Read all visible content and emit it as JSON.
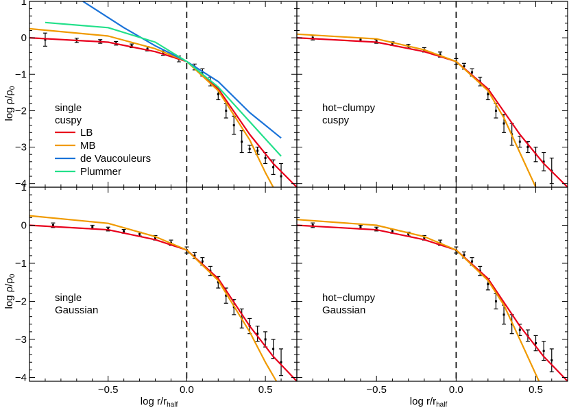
{
  "chart_data": {
    "type": "line",
    "xlim": [
      -1.0,
      0.7
    ],
    "ylim": [
      -4.1,
      1.0
    ],
    "xlabel": "log r/r",
    "xlabel_sub": "half",
    "ylabel": "log ρ/ρ",
    "ylabel_sub": "0",
    "x_ticks": [
      -0.5,
      0.0,
      0.5
    ],
    "x_tick_labels": [
      "−0.5",
      "0.0",
      "0.5"
    ],
    "y_ticks": [
      1,
      0,
      -1,
      -2,
      -3,
      -4
    ],
    "y_tick_labels": [
      "1",
      "0",
      "−1",
      "−2",
      "−3",
      "−4"
    ],
    "reference_line_x": 0.0,
    "series_colors": {
      "LB": "#e8001c",
      "MB": "#f09a00",
      "de Vaucouleurs": "#1a73d9",
      "Plummer": "#22e08a",
      "data": "#000000",
      "reference": "#000000"
    },
    "panels": [
      {
        "label_lines": [
          "single",
          "cuspy"
        ],
        "legend": [
          "LB",
          "MB",
          "de Vaucouleurs",
          "Plummer"
        ],
        "series": [
          {
            "name": "LB",
            "x": [
              -1.0,
              -0.5,
              -0.2,
              0.0,
              0.2,
              0.4,
              0.55,
              0.7
            ],
            "y": [
              0.0,
              -0.12,
              -0.38,
              -0.65,
              -1.4,
              -2.65,
              -3.45,
              -4.1
            ]
          },
          {
            "name": "MB",
            "x": [
              -1.0,
              -0.5,
              -0.2,
              0.0,
              0.2,
              0.4,
              0.5,
              0.55
            ],
            "y": [
              0.25,
              0.05,
              -0.3,
              -0.65,
              -1.45,
              -2.8,
              -3.7,
              -4.1
            ]
          },
          {
            "name": "de Vaucouleurs",
            "x": [
              -0.66,
              -0.4,
              -0.2,
              0.0,
              0.2,
              0.4,
              0.6
            ],
            "y": [
              1.0,
              0.28,
              -0.22,
              -0.65,
              -1.2,
              -2.05,
              -2.75
            ]
          },
          {
            "name": "Plummer",
            "x": [
              -0.9,
              -0.5,
              -0.2,
              0.0,
              0.2,
              0.4,
              0.6
            ],
            "y": [
              0.42,
              0.28,
              -0.12,
              -0.65,
              -1.35,
              -2.3,
              -3.25
            ]
          }
        ],
        "data_points": {
          "x": [
            -0.9,
            -0.7,
            -0.55,
            -0.45,
            -0.35,
            -0.25,
            -0.15,
            -0.05,
            0.05,
            0.1,
            0.15,
            0.2,
            0.25,
            0.3,
            0.35,
            0.4,
            0.45,
            0.5,
            0.55,
            0.6
          ],
          "y": [
            -0.05,
            -0.07,
            -0.1,
            -0.15,
            -0.22,
            -0.3,
            -0.42,
            -0.58,
            -0.8,
            -0.95,
            -1.2,
            -1.55,
            -2.0,
            -2.4,
            -2.85,
            -3.05,
            -3.1,
            -3.3,
            -3.55,
            -3.8
          ],
          "err": [
            0.18,
            0.06,
            0.05,
            0.05,
            0.05,
            0.06,
            0.06,
            0.08,
            0.08,
            0.1,
            0.12,
            0.15,
            0.2,
            0.25,
            0.3,
            0.1,
            0.1,
            0.15,
            0.2,
            0.35
          ]
        }
      },
      {
        "label_lines": [
          "hot−clumpy",
          "cuspy"
        ],
        "legend": [],
        "series": [
          {
            "name": "LB",
            "x": [
              -1.0,
              -0.5,
              -0.2,
              0.0,
              0.2,
              0.4,
              0.55,
              0.7
            ],
            "y": [
              0.0,
              -0.12,
              -0.38,
              -0.65,
              -1.4,
              -2.65,
              -3.45,
              -4.1
            ]
          },
          {
            "name": "MB",
            "x": [
              -1.0,
              -0.5,
              -0.2,
              0.0,
              0.2,
              0.3,
              0.4,
              0.5
            ],
            "y": [
              0.1,
              -0.03,
              -0.33,
              -0.65,
              -1.45,
              -2.2,
              -3.15,
              -4.1
            ]
          }
        ],
        "data_points": {
          "x": [
            -0.9,
            -0.6,
            -0.5,
            -0.4,
            -0.3,
            -0.2,
            -0.1,
            0.0,
            0.05,
            0.1,
            0.15,
            0.2,
            0.25,
            0.3,
            0.35,
            0.4,
            0.45,
            0.5,
            0.55,
            0.6
          ],
          "y": [
            0.0,
            -0.05,
            -0.1,
            -0.16,
            -0.23,
            -0.33,
            -0.46,
            -0.65,
            -0.78,
            -0.95,
            -1.2,
            -1.55,
            -2.0,
            -2.35,
            -2.65,
            -2.85,
            -3.0,
            -3.2,
            -3.4,
            -3.65
          ],
          "err": [
            0.06,
            0.05,
            0.05,
            0.05,
            0.05,
            0.06,
            0.07,
            0.08,
            0.08,
            0.1,
            0.12,
            0.15,
            0.2,
            0.25,
            0.3,
            0.15,
            0.15,
            0.2,
            0.25,
            0.35
          ]
        }
      },
      {
        "label_lines": [
          "single",
          "Gaussian"
        ],
        "legend": [],
        "series": [
          {
            "name": "LB",
            "x": [
              -1.0,
              -0.5,
              -0.2,
              0.0,
              0.2,
              0.4,
              0.55,
              0.7
            ],
            "y": [
              0.0,
              -0.12,
              -0.38,
              -0.65,
              -1.4,
              -2.65,
              -3.45,
              -4.1
            ]
          },
          {
            "name": "MB",
            "x": [
              -1.0,
              -0.5,
              -0.2,
              0.0,
              0.2,
              0.4,
              0.5,
              0.57
            ],
            "y": [
              0.25,
              0.05,
              -0.3,
              -0.65,
              -1.45,
              -2.8,
              -3.6,
              -4.1
            ]
          }
        ],
        "data_points": {
          "x": [
            -0.85,
            -0.6,
            -0.5,
            -0.4,
            -0.3,
            -0.2,
            -0.1,
            0.0,
            0.05,
            0.1,
            0.15,
            0.2,
            0.25,
            0.3,
            0.35,
            0.4,
            0.45,
            0.5,
            0.55,
            0.6
          ],
          "y": [
            0.0,
            -0.05,
            -0.1,
            -0.16,
            -0.23,
            -0.33,
            -0.46,
            -0.65,
            -0.8,
            -0.95,
            -1.2,
            -1.5,
            -1.85,
            -2.15,
            -2.45,
            -2.65,
            -2.85,
            -3.0,
            -3.25,
            -3.6
          ],
          "err": [
            0.06,
            0.05,
            0.05,
            0.05,
            0.05,
            0.06,
            0.07,
            0.08,
            0.08,
            0.1,
            0.12,
            0.15,
            0.2,
            0.2,
            0.25,
            0.2,
            0.2,
            0.2,
            0.25,
            0.35
          ]
        }
      },
      {
        "label_lines": [
          "hot−clumpy",
          "Gaussian"
        ],
        "legend": [],
        "series": [
          {
            "name": "LB",
            "x": [
              -1.0,
              -0.5,
              -0.2,
              0.0,
              0.2,
              0.4,
              0.55,
              0.7
            ],
            "y": [
              0.0,
              -0.12,
              -0.38,
              -0.65,
              -1.4,
              -2.65,
              -3.45,
              -4.1
            ]
          },
          {
            "name": "MB",
            "x": [
              -1.0,
              -0.5,
              -0.2,
              0.0,
              0.2,
              0.3,
              0.4,
              0.52
            ],
            "y": [
              0.15,
              0.0,
              -0.3,
              -0.65,
              -1.45,
              -2.1,
              -3.0,
              -4.1
            ]
          }
        ],
        "data_points": {
          "x": [
            -0.9,
            -0.6,
            -0.5,
            -0.4,
            -0.3,
            -0.2,
            -0.1,
            0.0,
            0.05,
            0.1,
            0.15,
            0.2,
            0.25,
            0.3,
            0.35,
            0.4,
            0.45,
            0.5,
            0.55,
            0.6
          ],
          "y": [
            0.0,
            -0.05,
            -0.1,
            -0.16,
            -0.23,
            -0.33,
            -0.46,
            -0.65,
            -0.78,
            -0.95,
            -1.2,
            -1.55,
            -2.0,
            -2.35,
            -2.6,
            -2.75,
            -2.9,
            -3.1,
            -3.3,
            -3.55
          ],
          "err": [
            0.06,
            0.05,
            0.05,
            0.05,
            0.05,
            0.06,
            0.07,
            0.08,
            0.08,
            0.1,
            0.12,
            0.15,
            0.2,
            0.25,
            0.25,
            0.15,
            0.15,
            0.2,
            0.25,
            0.3
          ]
        }
      }
    ]
  }
}
